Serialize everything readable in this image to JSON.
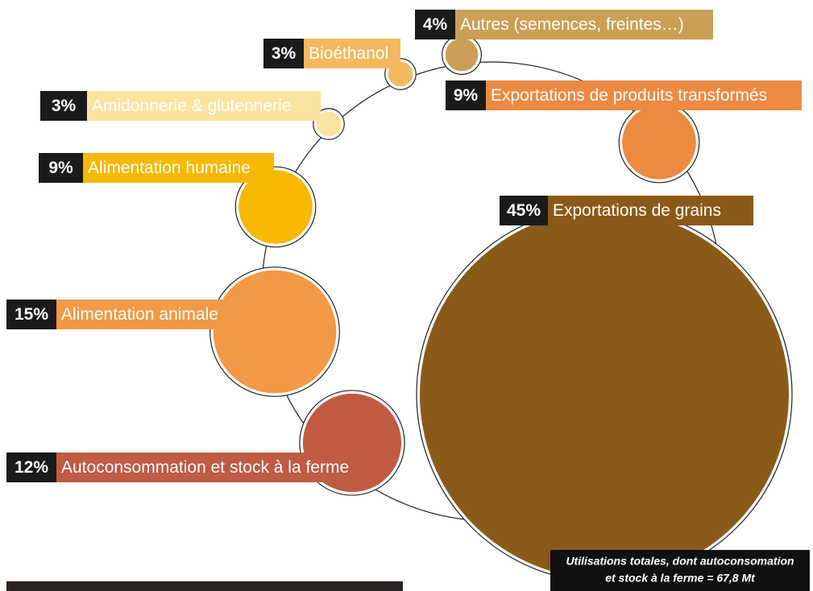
{
  "chart_data": {
    "type": "bubble",
    "categories": [
      "Exportations de grains",
      "Exportations de produits transformés",
      "Autres (semences, freintes…)",
      "Bioéthanol",
      "Amidonnerie & glutennerie",
      "Alimentation humaine",
      "Alimentation animale",
      "Autoconsommation et stock à la ferme"
    ],
    "values": [
      45,
      9,
      4,
      3,
      3,
      9,
      15,
      12
    ],
    "value_labels": [
      "45%",
      "9%",
      "4%",
      "3%",
      "3%",
      "9%",
      "15%",
      "12%"
    ],
    "colors": [
      "#8a5a19",
      "#ec8a42",
      "#c9a055",
      "#f4b860",
      "#fde3a0",
      "#f6b800",
      "#f29a45",
      "#c05a43"
    ],
    "note": [
      "Utilisations totales, dont autoconsomation",
      "et stock à la ferme = 67,8 Mt"
    ]
  }
}
